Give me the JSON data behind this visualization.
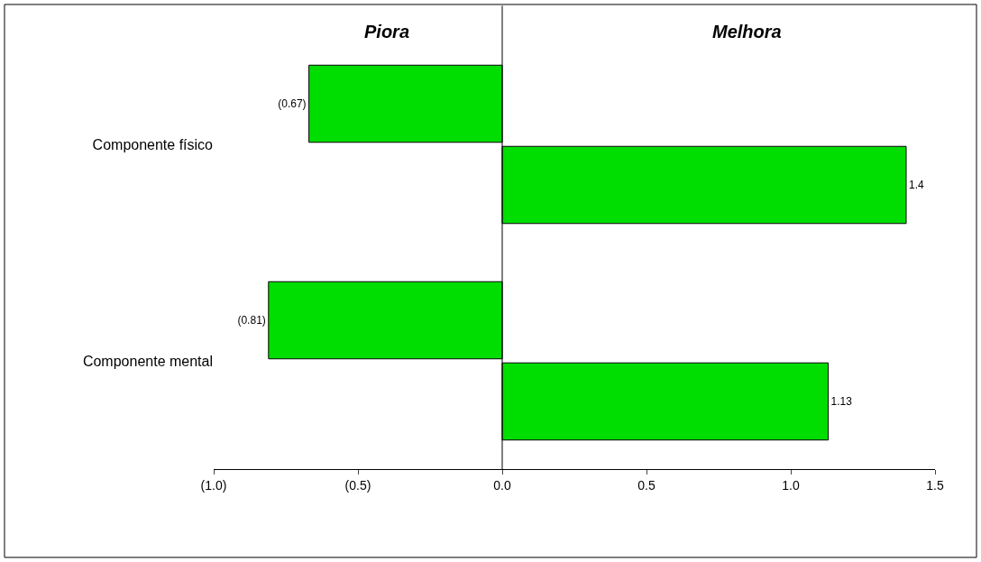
{
  "chart_data": {
    "type": "bar",
    "orientation": "horizontal",
    "categories": [
      "Componente físico",
      "Componente mental"
    ],
    "series": [
      {
        "color": "#00dd00",
        "values": [
          -0.67,
          -0.81
        ],
        "value_labels": [
          "(0.67)",
          "(0.81)"
        ]
      },
      {
        "color": "#00dd00",
        "values": [
          1.4,
          1.13
        ],
        "value_labels": [
          "1.4",
          "1.13"
        ]
      }
    ],
    "xlim": [
      -1.0,
      1.5
    ],
    "xticks": [
      {
        "value": -1.0,
        "label": "(1.0)"
      },
      {
        "value": -0.5,
        "label": "(0.5)"
      },
      {
        "value": 0.0,
        "label": "0.0"
      },
      {
        "value": 0.5,
        "label": "0.5"
      },
      {
        "value": 1.0,
        "label": "1.0"
      },
      {
        "value": 1.5,
        "label": "1.5"
      }
    ],
    "annotations": [
      "Piora",
      "Melhora"
    ],
    "ref_lines": [
      {
        "axis": "x",
        "value": 0
      }
    ],
    "legend": false
  }
}
